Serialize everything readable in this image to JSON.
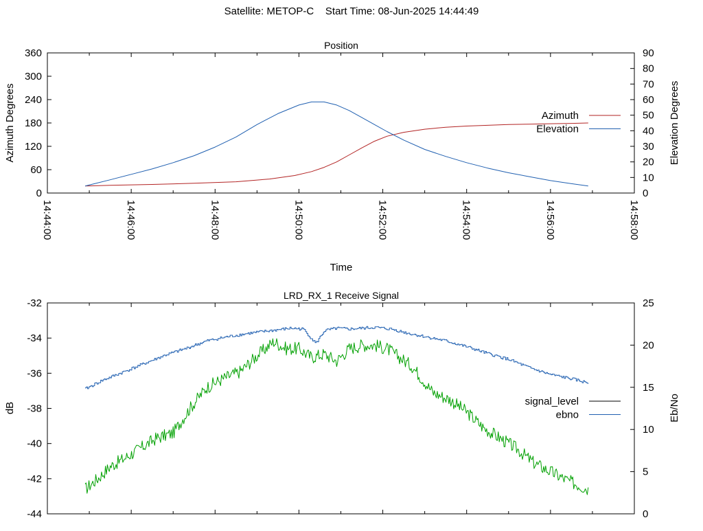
{
  "header": {
    "satellite_label": "Satellite: METOP-C",
    "start_label": "Start Time: 08-Jun-2025 14:44:49"
  },
  "chart_data": [
    {
      "type": "line",
      "title": "Position",
      "xlabel": "Time",
      "ylabel": "Azimuth Degrees",
      "y2label": "Elevation Degrees",
      "x_ticks": [
        "14:44:00",
        "14:46:00",
        "14:48:00",
        "14:50:00",
        "14:52:00",
        "14:54:00",
        "14:56:00",
        "14:58:00"
      ],
      "xlim_minutes": [
        0,
        14
      ],
      "ylim": [
        0,
        360
      ],
      "y_ticks": [
        0,
        60,
        120,
        180,
        240,
        300,
        360
      ],
      "y2lim": [
        0,
        90
      ],
      "y2_ticks": [
        0,
        10,
        20,
        30,
        40,
        50,
        60,
        70,
        80,
        90
      ],
      "legend_position": "right",
      "grid": false,
      "series": [
        {
          "name": "Azimuth",
          "axis": "y",
          "color": "#b22222",
          "x_minutes": [
            0.9,
            1.5,
            2.5,
            3.5,
            4.5,
            5.3,
            5.9,
            6.3,
            6.6,
            6.9,
            7.2,
            7.5,
            7.8,
            8.1,
            8.5,
            9,
            9.5,
            10,
            10.5,
            11,
            11.5,
            12,
            12.5,
            12.9
          ],
          "values": [
            18,
            20,
            22,
            25,
            29,
            36,
            45,
            55,
            66,
            80,
            98,
            116,
            133,
            146,
            156,
            164,
            169,
            172,
            174,
            176,
            177,
            178,
            179,
            180
          ]
        },
        {
          "name": "Elevation",
          "axis": "y2",
          "color": "#1f5fb0",
          "x_minutes": [
            0.9,
            1.5,
            2,
            2.5,
            3,
            3.5,
            4,
            4.5,
            5,
            5.5,
            6,
            6.3,
            6.6,
            6.9,
            7.2,
            7.5,
            7.8,
            8.1,
            8.5,
            9,
            9.5,
            10,
            10.5,
            11,
            11.5,
            12,
            12.5,
            12.9
          ],
          "values": [
            4.5,
            8.5,
            12,
            15.5,
            19.5,
            24,
            29.5,
            36,
            44,
            51,
            56.5,
            58.5,
            58.5,
            56.5,
            53,
            48.5,
            44,
            39.5,
            34,
            28,
            23.5,
            19.5,
            16,
            13,
            10.5,
            8,
            6,
            4.5
          ]
        }
      ]
    },
    {
      "type": "line",
      "title": "LRD_RX_1 Receive Signal",
      "xlabel": "",
      "ylabel": "dB",
      "y2label": "Eb/No",
      "xlim_minutes": [
        0,
        14
      ],
      "ylim": [
        -44,
        -32
      ],
      "y_ticks": [
        -44,
        -42,
        -40,
        -38,
        -36,
        -34,
        -32
      ],
      "y2lim": [
        0,
        25
      ],
      "y2_ticks": [
        0,
        5,
        10,
        15,
        20,
        25
      ],
      "legend_position": "right",
      "grid": false,
      "series": [
        {
          "name": "signal_level",
          "axis": "y",
          "color": "#00a000",
          "legend_color": "#000000",
          "x_minutes": [
            0.9,
            1.2,
            1.5,
            1.8,
            2.2,
            2.6,
            3,
            3.4,
            3.8,
            4.2,
            4.6,
            5,
            5.4,
            5.7,
            6,
            6.3,
            6.6,
            6.9,
            7.2,
            7.5,
            7.8,
            8.1,
            8.4,
            8.7,
            9.2,
            9.6,
            10,
            10.4,
            10.8,
            11.2,
            11.6,
            12,
            12.4,
            12.9
          ],
          "values": [
            -42.6,
            -42,
            -41.3,
            -40.9,
            -40.3,
            -39.7,
            -39.4,
            -38,
            -36.8,
            -36.3,
            -35.9,
            -35,
            -34.2,
            -34.6,
            -34.6,
            -35.1,
            -34.9,
            -35.3,
            -34.6,
            -34.4,
            -34.4,
            -34.6,
            -35.1,
            -35.6,
            -37.1,
            -37.5,
            -38.2,
            -39.1,
            -39.7,
            -40.3,
            -41.1,
            -41.6,
            -42.1,
            -42.6
          ]
        },
        {
          "name": "ebno",
          "axis": "y2",
          "color": "#1f5fb0",
          "x_minutes": [
            0.9,
            1.3,
            1.8,
            2.3,
            2.8,
            3.3,
            3.8,
            4.3,
            4.8,
            5.3,
            5.8,
            6.1,
            6.4,
            6.6,
            6.9,
            7.2,
            7.5,
            7.8,
            8.2,
            8.6,
            9,
            9.5,
            10,
            10.5,
            11,
            11.5,
            12,
            12.5,
            12.9
          ],
          "values": [
            14.8,
            15.8,
            16.8,
            17.8,
            18.8,
            19.6,
            20.5,
            21,
            21.4,
            21.7,
            22,
            21.9,
            20.2,
            21.7,
            22,
            21.9,
            22,
            22.1,
            21.9,
            21.4,
            21,
            20.5,
            19.8,
            19,
            18.3,
            17.3,
            16.5,
            16,
            15.5
          ]
        }
      ]
    }
  ]
}
